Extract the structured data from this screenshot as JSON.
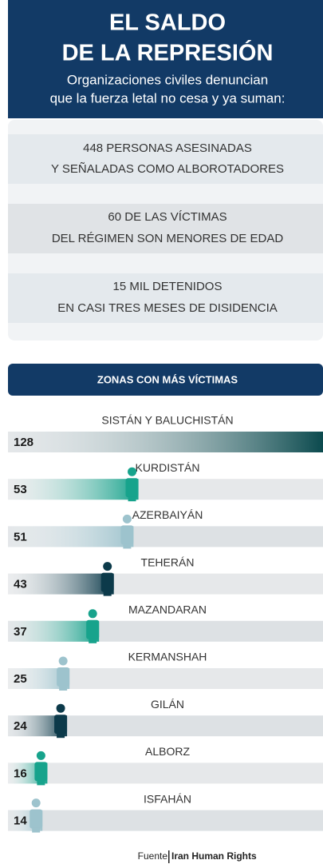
{
  "header": {
    "title_lines": [
      "EL SALDO",
      "DE LA REPRESIÓN"
    ],
    "subtitle_lines": [
      "Organizaciones civiles denuncian",
      "que la fuerza letal no cesa y ya suman:"
    ]
  },
  "facts": [
    [
      "448 PERSONAS ASESINADAS",
      "Y SEÑALADAS COMO ALBOROTADORES"
    ],
    [
      "60 DE LAS VÍCTIMAS",
      "DEL RÉGIMEN SON MENORES DE EDAD"
    ],
    [
      "15 MIL DETENIDOS",
      "EN CASI TRES MESES DE DISIDENCIA"
    ]
  ],
  "chart_data": {
    "type": "hbar",
    "title": "ZONAS CON MÁS VÍCTIMAS",
    "categories": [
      "SISTÁN Y BALUCHISTÁN",
      "KURDISTÁN",
      "AZERBAIYÁN",
      "TEHERÁN",
      "MAZANDARAN",
      "KERMANSHAH",
      "GILÁN",
      "ALBORZ",
      "ISFAHÁN"
    ],
    "values": [
      128,
      53,
      51,
      43,
      37,
      25,
      24,
      16,
      14
    ],
    "colors": [
      "#0b4a4e",
      "#17a38c",
      "#9dc3cd",
      "#0c3a4a",
      "#17a38c",
      "#9dc3cd",
      "#0c3a4a",
      "#17a38c",
      "#9dc3cd"
    ]
  },
  "source": {
    "label": "Fuente",
    "name": "Iran Human Rights"
  }
}
